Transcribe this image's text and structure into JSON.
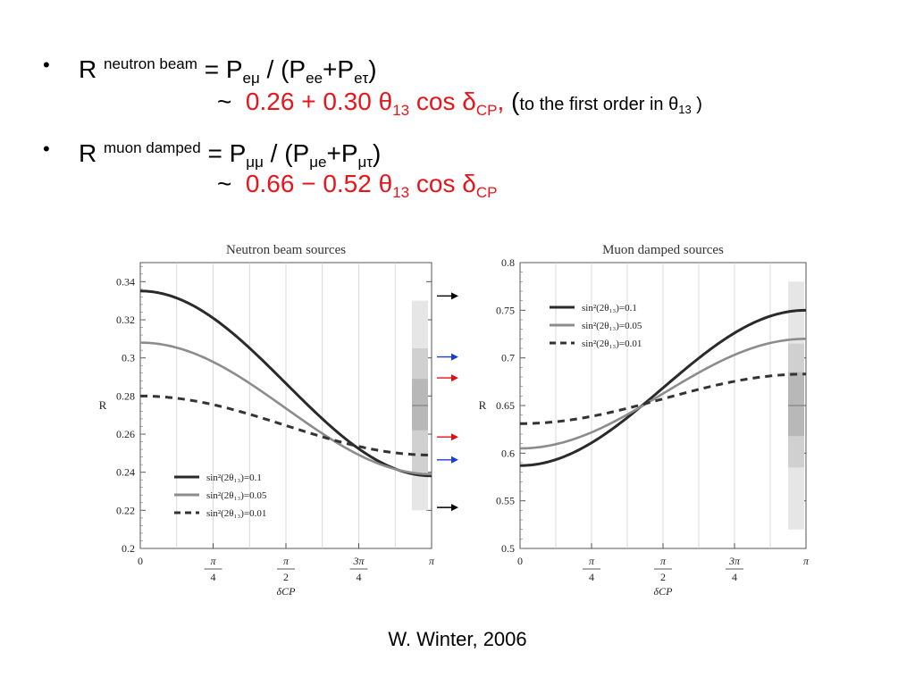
{
  "slide": {
    "lines": [
      {
        "bullet": "•",
        "r": "R",
        "label": "neutron beam",
        "eq": "= P",
        "s1": "eμ",
        "mid": " / (P",
        "s2": "ee",
        "plus": "+P",
        "s3": "eτ",
        "close": ")"
      },
      {
        "approx": "~",
        "expr_a": "0.26 + 0.30 θ",
        "sub_a": "13",
        "expr_b": " cos δ",
        "sub_b": "CP",
        "comma": ",",
        "paren": " (",
        "note_a": "to the first  order in θ",
        "note_sub": "13",
        "note_close": " )"
      },
      {
        "bullet": "•",
        "r": "R",
        "label": "muon damped",
        "eq": "= P",
        "s1": "μμ",
        "mid": " / (P",
        "s2": "μe",
        "plus": "+P",
        "s3": "μτ",
        "close": ")"
      },
      {
        "approx": "~",
        "expr_a": "0.66 − 0.52 θ",
        "sub_a": "13",
        "expr_b": " cos δ",
        "sub_b": "CP"
      }
    ],
    "credit": "W. Winter, 2006"
  },
  "chart_data": [
    {
      "type": "line",
      "title": "Neutron beam sources",
      "xlabel": "δCP",
      "ylabel": "R",
      "xlim": [
        0,
        3.14159
      ],
      "ylim": [
        0.2,
        0.35
      ],
      "xticks": [
        {
          "value": 0,
          "label": "0"
        },
        {
          "value": 0.7854,
          "label": "π/4"
        },
        {
          "value": 1.5708,
          "label": "π/2"
        },
        {
          "value": 2.3562,
          "label": "3π/4"
        },
        {
          "value": 3.14159,
          "label": "π"
        }
      ],
      "yticks": [
        0.2,
        0.22,
        0.24,
        0.26,
        0.28,
        0.3,
        0.32,
        0.34
      ],
      "ytick_labels": [
        "0.2",
        "0.22",
        "0.24",
        "0.26",
        "0.28",
        "0.3",
        "0.32",
        "0.34"
      ],
      "series": [
        {
          "name": "sin²(2θ₁₃)=0.1",
          "style": "solid-dark",
          "color": "#2a2a2a",
          "a": 0.2866,
          "b": 0.0485
        },
        {
          "name": "sin²(2θ₁₃)=0.05",
          "style": "solid-gray",
          "color": "#8c8c8c",
          "a": 0.2735,
          "b": 0.0345
        },
        {
          "name": "sin²(2θ₁₃)=0.01",
          "style": "dashed",
          "color": "#333333",
          "a": 0.2645,
          "b": 0.0155
        }
      ],
      "bands": [
        {
          "range": [
            0.22,
            0.33
          ],
          "color": "#e6e6e6"
        },
        {
          "range": [
            0.24,
            0.305
          ],
          "color": "#d0d0d0"
        },
        {
          "range": [
            0.262,
            0.289
          ],
          "color": "#b8b8b8"
        }
      ],
      "band_center": 0.275,
      "arrows": [
        {
          "value": 0.3325,
          "color": "#000000"
        },
        {
          "value": 0.3005,
          "color": "#1a3fd0"
        },
        {
          "value": 0.2895,
          "color": "#e01010"
        },
        {
          "value": 0.2585,
          "color": "#e01010"
        },
        {
          "value": 0.2465,
          "color": "#1a3fd0"
        },
        {
          "value": 0.2215,
          "color": "#000000"
        }
      ],
      "legend_position": "bottom-left",
      "grid": "vertical"
    },
    {
      "type": "line",
      "title": "Muon damped sources",
      "xlabel": "δCP",
      "ylabel": "R",
      "xlim": [
        0,
        3.14159
      ],
      "ylim": [
        0.5,
        0.8
      ],
      "xticks": [
        {
          "value": 0,
          "label": "0"
        },
        {
          "value": 0.7854,
          "label": "π/4"
        },
        {
          "value": 1.5708,
          "label": "π/2"
        },
        {
          "value": 2.3562,
          "label": "3π/4"
        },
        {
          "value": 3.14159,
          "label": "π"
        }
      ],
      "yticks": [
        0.5,
        0.55,
        0.6,
        0.65,
        0.7,
        0.75,
        0.8
      ],
      "ytick_labels": [
        "0.5",
        "0.55",
        "0.6",
        "0.65",
        "0.7",
        "0.75",
        "0.8"
      ],
      "series": [
        {
          "name": "sin²(2θ₁₃)=0.1",
          "style": "solid-dark",
          "color": "#2a2a2a",
          "a": 0.6685,
          "b": -0.0815
        },
        {
          "name": "sin²(2θ₁₃)=0.05",
          "style": "solid-gray",
          "color": "#8c8c8c",
          "a": 0.6625,
          "b": -0.0575
        },
        {
          "name": "sin²(2θ₁₃)=0.01",
          "style": "dashed",
          "color": "#333333",
          "a": 0.657,
          "b": -0.026
        }
      ],
      "bands": [
        {
          "range": [
            0.52,
            0.78
          ],
          "color": "#e6e6e6"
        },
        {
          "range": [
            0.585,
            0.715
          ],
          "color": "#d0d0d0"
        },
        {
          "range": [
            0.618,
            0.685
          ],
          "color": "#b8b8b8"
        }
      ],
      "band_center": 0.65,
      "legend_position": "top-left",
      "grid": "vertical"
    }
  ]
}
